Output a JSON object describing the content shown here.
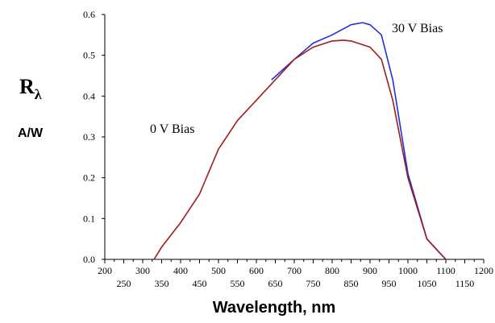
{
  "chart_data": {
    "type": "line",
    "xlabel": "Wavelength, nm",
    "ylabel_symbol": "R",
    "ylabel_subscript": "λ",
    "ylabel_unit": "A/W",
    "xlim": [
      200,
      1200
    ],
    "ylim": [
      0,
      0.6
    ],
    "grid": false,
    "x_ticks_upper": [
      "200",
      "300",
      "400",
      "500",
      "600",
      "700",
      "800",
      "900",
      "1000",
      "1100",
      "1200"
    ],
    "x_ticks_lower": [
      "250",
      "350",
      "450",
      "550",
      "650",
      "750",
      "850",
      "950",
      "1050",
      "1150"
    ],
    "y_ticks": [
      "0.0",
      "0.1",
      "0.2",
      "0.3",
      "0.4",
      "0.5",
      "0.6"
    ],
    "series": [
      {
        "name": "0 V Bias",
        "color": "#a01c1c",
        "x": [
          330,
          350,
          400,
          450,
          500,
          550,
          600,
          650,
          700,
          750,
          800,
          830,
          850,
          900,
          930,
          960,
          1000,
          1050,
          1080,
          1100
        ],
        "y": [
          0.0,
          0.03,
          0.09,
          0.16,
          0.27,
          0.34,
          0.39,
          0.44,
          0.49,
          0.52,
          0.535,
          0.537,
          0.535,
          0.52,
          0.49,
          0.39,
          0.2,
          0.05,
          0.02,
          0.0
        ]
      },
      {
        "name": "30 V Bias",
        "color": "#1f2fe0",
        "x": [
          640,
          700,
          750,
          800,
          850,
          880,
          900,
          930,
          960,
          1000,
          1050,
          1080,
          1100
        ],
        "y": [
          0.44,
          0.49,
          0.53,
          0.55,
          0.575,
          0.58,
          0.575,
          0.55,
          0.44,
          0.21,
          0.05,
          0.02,
          0.0
        ]
      }
    ],
    "annotations": [
      "0 V Bias",
      "30 V Bias"
    ]
  }
}
